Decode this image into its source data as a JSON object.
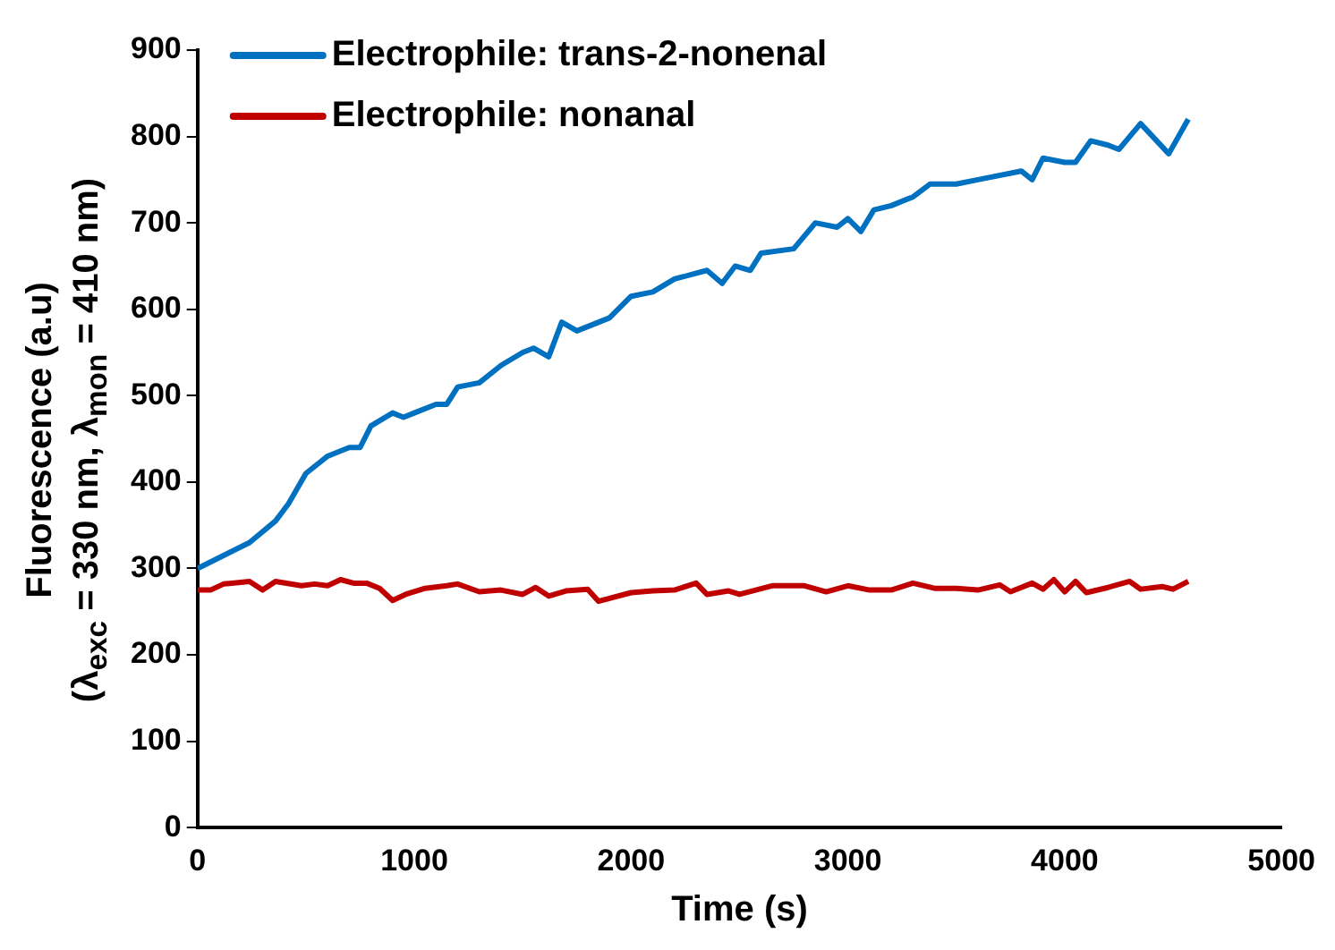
{
  "chart_data": {
    "type": "line",
    "xlabel": "Time (s)",
    "ylabel": "Fluorescence (a.u)\n(λ$_{exc}$ = 330 nm, λ$_{mon}$ = 410 nm)",
    "xlim": [
      0,
      5000
    ],
    "xticks": [
      0,
      1000,
      2000,
      3000,
      4000,
      5000
    ],
    "ylim": [
      0,
      900
    ],
    "yticks": [
      0,
      100,
      200,
      300,
      400,
      500,
      600,
      700,
      800,
      900
    ],
    "grid": false,
    "legend": "top left",
    "marker": "none",
    "line_style": "solid",
    "series": [
      {
        "name": "Electrophile: trans-2-nonenal",
        "color": "#0070c0",
        "x": [
          0,
          120,
          240,
          360,
          420,
          500,
          600,
          700,
          750,
          800,
          900,
          950,
          1000,
          1100,
          1150,
          1200,
          1300,
          1400,
          1500,
          1550,
          1620,
          1680,
          1750,
          1900,
          2000,
          2100,
          2200,
          2350,
          2420,
          2480,
          2550,
          2600,
          2750,
          2850,
          2950,
          3000,
          3060,
          3120,
          3200,
          3300,
          3380,
          3500,
          3600,
          3800,
          3850,
          3900,
          4000,
          4050,
          4120,
          4200,
          4250,
          4350,
          4480,
          4570
        ],
        "values": [
          300,
          315,
          330,
          355,
          375,
          410,
          430,
          440,
          440,
          465,
          480,
          475,
          480,
          490,
          490,
          510,
          515,
          535,
          550,
          555,
          545,
          585,
          575,
          590,
          615,
          620,
          635,
          645,
          630,
          650,
          645,
          665,
          670,
          700,
          695,
          705,
          690,
          715,
          720,
          730,
          745,
          745,
          750,
          760,
          750,
          775,
          770,
          770,
          795,
          790,
          785,
          815,
          780,
          820
        ]
      },
      {
        "name": "Electrophile: nonanal",
        "color": "#c00000",
        "x": [
          0,
          60,
          120,
          240,
          300,
          360,
          480,
          540,
          600,
          660,
          720,
          780,
          840,
          900,
          960,
          1050,
          1150,
          1200,
          1300,
          1400,
          1500,
          1560,
          1620,
          1700,
          1800,
          1850,
          2000,
          2100,
          2200,
          2300,
          2350,
          2450,
          2500,
          2650,
          2800,
          2900,
          3000,
          3100,
          3200,
          3300,
          3400,
          3500,
          3600,
          3700,
          3750,
          3850,
          3900,
          3950,
          4000,
          4050,
          4100,
          4200,
          4300,
          4350,
          4450,
          4500,
          4570
        ],
        "values": [
          275,
          275,
          282,
          285,
          275,
          285,
          280,
          282,
          280,
          287,
          283,
          283,
          277,
          263,
          270,
          277,
          280,
          282,
          273,
          275,
          270,
          278,
          268,
          274,
          276,
          262,
          272,
          274,
          275,
          283,
          270,
          274,
          270,
          280,
          280,
          273,
          280,
          275,
          275,
          283,
          277,
          277,
          275,
          281,
          273,
          283,
          276,
          287,
          273,
          285,
          272,
          278,
          285,
          276,
          279,
          276,
          285
        ]
      }
    ]
  }
}
